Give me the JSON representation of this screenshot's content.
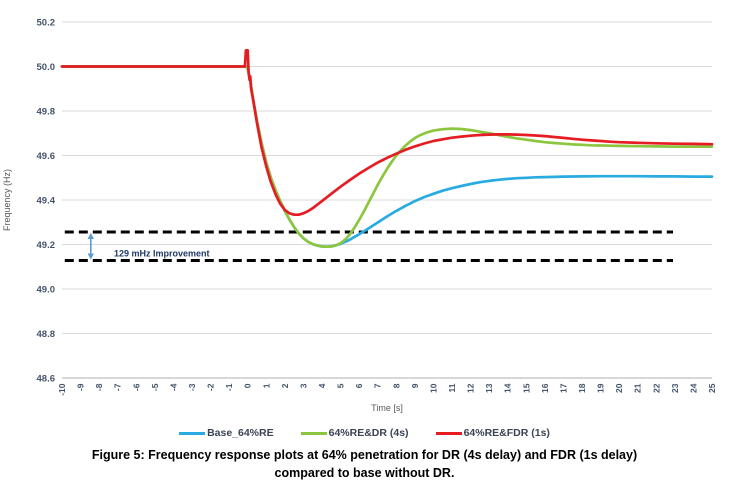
{
  "figure": {
    "caption_line1": "Figure 5: Frequency response plots at 64% penetration for DR (4s delay) and FDR (1s delay)",
    "caption_line2": "compared to base without DR."
  },
  "chart_data": {
    "type": "line",
    "title": "",
    "xlabel": "Time [s]",
    "ylabel": "Frequency (Hz)",
    "xlim": [
      -10,
      25
    ],
    "ylim": [
      48.6,
      50.2
    ],
    "grid": "horizontal",
    "legend_position": "bottom",
    "x_ticks": [
      "-10",
      "-9",
      "-8",
      "-7",
      "-6",
      "-5",
      "-4",
      "-3",
      "-2",
      "-1",
      "0",
      "1",
      "2",
      "3",
      "4",
      "5",
      "6",
      "7",
      "8",
      "9",
      "10",
      "11",
      "12",
      "13",
      "14",
      "15",
      "16",
      "17",
      "18",
      "19",
      "20",
      "21",
      "22",
      "23",
      "24",
      "25"
    ],
    "y_ticks": [
      "48.6",
      "48.8",
      "49.0",
      "49.2",
      "49.4",
      "49.6",
      "49.8",
      "50.0",
      "50.2"
    ],
    "colors": {
      "grid": "#d9d9d9",
      "axis_line": "#bfbfbf",
      "tick_label": "#44546a",
      "axis_title": "#595959",
      "dashed_line": "#000000",
      "arrow": "#5b9bd5",
      "annotation_text": "#1f3864"
    },
    "annotation": {
      "label": "129 mHz Improvement",
      "upper_line_hz": 49.256,
      "lower_line_hz": 49.128,
      "line_t_start": -9.85,
      "line_t_end": 22.9,
      "arrow_t": -8.45,
      "label_t": -7.2,
      "label_hz": 49.147
    },
    "series": [
      {
        "name": "Base_64%RE",
        "color": "#29abe2",
        "points": [
          [
            -10,
            50
          ],
          [
            -5,
            50
          ],
          [
            -0.1,
            50
          ],
          [
            0,
            49.99
          ],
          [
            0.15,
            49.93
          ],
          [
            0.3,
            49.85
          ],
          [
            0.5,
            49.755
          ],
          [
            0.75,
            49.655
          ],
          [
            1,
            49.568
          ],
          [
            1.25,
            49.5
          ],
          [
            1.5,
            49.443
          ],
          [
            1.75,
            49.395
          ],
          [
            2,
            49.35
          ],
          [
            2.25,
            49.312
          ],
          [
            2.5,
            49.278
          ],
          [
            2.75,
            49.25
          ],
          [
            3,
            49.228
          ],
          [
            3.25,
            49.212
          ],
          [
            3.5,
            49.202
          ],
          [
            3.75,
            49.195
          ],
          [
            4,
            49.191
          ],
          [
            4.25,
            49.19
          ],
          [
            4.5,
            49.192
          ],
          [
            4.75,
            49.197
          ],
          [
            5,
            49.203
          ],
          [
            5.25,
            49.212
          ],
          [
            5.5,
            49.222
          ],
          [
            5.75,
            49.234
          ],
          [
            6,
            49.246
          ],
          [
            6.5,
            49.272
          ],
          [
            7,
            49.299
          ],
          [
            7.5,
            49.326
          ],
          [
            8,
            49.351
          ],
          [
            8.5,
            49.374
          ],
          [
            9,
            49.395
          ],
          [
            9.5,
            49.413
          ],
          [
            10,
            49.428
          ],
          [
            10.5,
            49.442
          ],
          [
            11,
            49.453
          ],
          [
            11.5,
            49.463
          ],
          [
            12,
            49.472
          ],
          [
            12.5,
            49.48
          ],
          [
            13,
            49.486
          ],
          [
            13.5,
            49.491
          ],
          [
            14,
            49.495
          ],
          [
            14.5,
            49.498
          ],
          [
            15,
            49.5
          ],
          [
            15.5,
            49.502
          ],
          [
            16,
            49.503
          ],
          [
            17,
            49.505
          ],
          [
            18,
            49.506
          ],
          [
            19,
            49.507
          ],
          [
            20,
            49.507
          ],
          [
            21,
            49.507
          ],
          [
            22,
            49.506
          ],
          [
            23,
            49.506
          ],
          [
            24,
            49.505
          ],
          [
            25,
            49.505
          ]
        ]
      },
      {
        "name": "64%RE&DR (4s)",
        "color": "#8cc63e",
        "points": [
          [
            -10,
            50
          ],
          [
            -5,
            50
          ],
          [
            -0.1,
            50
          ],
          [
            0,
            49.99
          ],
          [
            0.15,
            49.93
          ],
          [
            0.3,
            49.85
          ],
          [
            0.5,
            49.755
          ],
          [
            0.75,
            49.655
          ],
          [
            1,
            49.568
          ],
          [
            1.25,
            49.5
          ],
          [
            1.5,
            49.443
          ],
          [
            1.75,
            49.395
          ],
          [
            2,
            49.35
          ],
          [
            2.25,
            49.312
          ],
          [
            2.5,
            49.278
          ],
          [
            2.75,
            49.25
          ],
          [
            3,
            49.228
          ],
          [
            3.25,
            49.212
          ],
          [
            3.5,
            49.202
          ],
          [
            3.75,
            49.195
          ],
          [
            4,
            49.191
          ],
          [
            4.25,
            49.19
          ],
          [
            4.5,
            49.191
          ],
          [
            4.75,
            49.196
          ],
          [
            5,
            49.206
          ],
          [
            5.25,
            49.222
          ],
          [
            5.5,
            49.246
          ],
          [
            5.75,
            49.276
          ],
          [
            6,
            49.31
          ],
          [
            6.25,
            49.348
          ],
          [
            6.5,
            49.388
          ],
          [
            6.75,
            49.428
          ],
          [
            7,
            49.468
          ],
          [
            7.25,
            49.505
          ],
          [
            7.5,
            49.54
          ],
          [
            7.75,
            49.571
          ],
          [
            8,
            49.6
          ],
          [
            8.25,
            49.624
          ],
          [
            8.5,
            49.645
          ],
          [
            8.75,
            49.663
          ],
          [
            9,
            49.678
          ],
          [
            9.25,
            49.69
          ],
          [
            9.5,
            49.699
          ],
          [
            9.75,
            49.706
          ],
          [
            10,
            49.712
          ],
          [
            10.5,
            49.718
          ],
          [
            11,
            49.721
          ],
          [
            11.5,
            49.719
          ],
          [
            12,
            49.714
          ],
          [
            12.5,
            49.707
          ],
          [
            13,
            49.7
          ],
          [
            13.5,
            49.692
          ],
          [
            14,
            49.684
          ],
          [
            14.5,
            49.677
          ],
          [
            15,
            49.671
          ],
          [
            15.5,
            49.665
          ],
          [
            16,
            49.66
          ],
          [
            16.5,
            49.656
          ],
          [
            17,
            49.653
          ],
          [
            17.5,
            49.65
          ],
          [
            18,
            49.648
          ],
          [
            18.5,
            49.646
          ],
          [
            19,
            49.645
          ],
          [
            19.5,
            49.644
          ],
          [
            20,
            49.643
          ],
          [
            21,
            49.642
          ],
          [
            22,
            49.641
          ],
          [
            23,
            49.64
          ],
          [
            24,
            49.64
          ],
          [
            25,
            49.64
          ]
        ]
      },
      {
        "name": "64%RE&FDR (1s)",
        "color": "#e51d23",
        "points": [
          [
            -10,
            50
          ],
          [
            -5,
            50
          ],
          [
            -0.15,
            50
          ],
          [
            -0.1,
            50.073
          ],
          [
            0,
            50.073
          ],
          [
            0.05,
            49.975
          ],
          [
            0.1,
            49.94
          ],
          [
            0.14,
            49.955
          ],
          [
            0.18,
            49.9
          ],
          [
            0.3,
            49.845
          ],
          [
            0.5,
            49.745
          ],
          [
            0.75,
            49.635
          ],
          [
            1,
            49.55
          ],
          [
            1.25,
            49.48
          ],
          [
            1.5,
            49.425
          ],
          [
            1.75,
            49.383
          ],
          [
            2,
            49.355
          ],
          [
            2.25,
            49.34
          ],
          [
            2.5,
            49.334
          ],
          [
            2.75,
            49.334
          ],
          [
            3,
            49.34
          ],
          [
            3.25,
            49.35
          ],
          [
            3.5,
            49.363
          ],
          [
            4,
            49.395
          ],
          [
            4.5,
            49.428
          ],
          [
            5,
            49.46
          ],
          [
            5.5,
            49.49
          ],
          [
            6,
            49.518
          ],
          [
            6.5,
            49.544
          ],
          [
            7,
            49.568
          ],
          [
            7.5,
            49.589
          ],
          [
            8,
            49.608
          ],
          [
            8.5,
            49.626
          ],
          [
            9,
            49.641
          ],
          [
            9.5,
            49.654
          ],
          [
            10,
            49.665
          ],
          [
            10.5,
            49.673
          ],
          [
            11,
            49.68
          ],
          [
            11.5,
            49.685
          ],
          [
            12,
            49.689
          ],
          [
            12.5,
            49.692
          ],
          [
            13,
            49.694
          ],
          [
            13.5,
            49.695
          ],
          [
            14,
            49.695
          ],
          [
            14.5,
            49.694
          ],
          [
            15,
            49.692
          ],
          [
            15.5,
            49.69
          ],
          [
            16,
            49.687
          ],
          [
            16.5,
            49.683
          ],
          [
            17,
            49.679
          ],
          [
            17.5,
            49.675
          ],
          [
            18,
            49.671
          ],
          [
            18.5,
            49.668
          ],
          [
            19,
            49.665
          ],
          [
            19.5,
            49.662
          ],
          [
            20,
            49.66
          ],
          [
            21,
            49.657
          ],
          [
            22,
            49.655
          ],
          [
            23,
            49.653
          ],
          [
            24,
            49.652
          ],
          [
            25,
            49.651
          ]
        ]
      }
    ]
  }
}
